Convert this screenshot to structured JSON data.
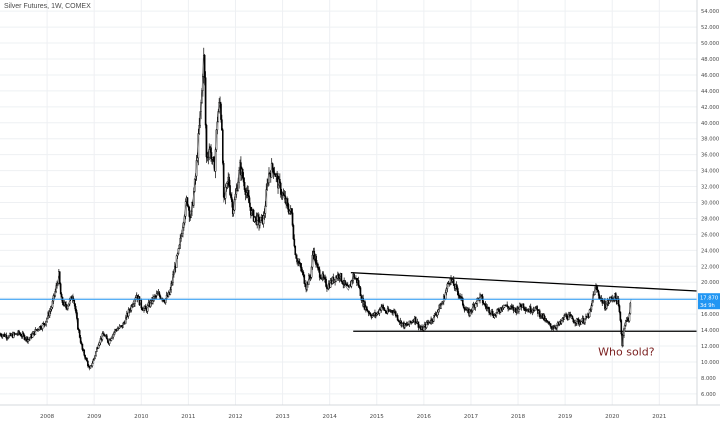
{
  "header": {
    "symbol_title": "Silver Futures, 1W, COMEX"
  },
  "colors": {
    "candle": "#000000",
    "grid": "#eef0f3",
    "axis_text": "#4a4a4a",
    "price_line": "#2196f3",
    "price_label_bg": "#2196f3",
    "price_label_text": "#ffffff",
    "trendline": "#000000",
    "annotation": "#7a1f1f"
  },
  "chart_data": {
    "type": "line",
    "title": "Silver Futures, 1W, COMEX",
    "xlabel": "",
    "ylabel": "",
    "xlim": [
      2007.0,
      2021.8
    ],
    "ylim": [
      4.6,
      55.4
    ],
    "grid": true,
    "x_ticks": [
      "2008",
      "2009",
      "2010",
      "2011",
      "2012",
      "2013",
      "2014",
      "2015",
      "2016",
      "2017",
      "2018",
      "2019",
      "2020",
      "2021"
    ],
    "y_ticks": [
      "54.000",
      "52.000",
      "50.000",
      "48.000",
      "46.000",
      "44.000",
      "42.000",
      "40.000",
      "38.000",
      "36.000",
      "34.000",
      "32.000",
      "30.000",
      "28.000",
      "26.000",
      "24.000",
      "22.000",
      "20.000",
      "18.000",
      "16.000",
      "14.000",
      "12.000",
      "10.000",
      "8.000",
      "6.000"
    ],
    "series": [
      {
        "values": [
          [
            2007.0,
            13.5
          ],
          [
            2007.2,
            13.2
          ],
          [
            2007.4,
            13.6
          ],
          [
            2007.6,
            12.8
          ],
          [
            2007.8,
            14.2
          ],
          [
            2007.95,
            14.8
          ],
          [
            2008.1,
            17.0
          ],
          [
            2008.2,
            19.5
          ],
          [
            2008.25,
            20.8
          ],
          [
            2008.3,
            17.8
          ],
          [
            2008.4,
            16.8
          ],
          [
            2008.5,
            17.8
          ],
          [
            2008.55,
            18.5
          ],
          [
            2008.65,
            14.5
          ],
          [
            2008.75,
            11.5
          ],
          [
            2008.85,
            10.0
          ],
          [
            2008.9,
            9.0
          ],
          [
            2009.0,
            10.5
          ],
          [
            2009.1,
            12.5
          ],
          [
            2009.2,
            13.5
          ],
          [
            2009.3,
            12.5
          ],
          [
            2009.45,
            14.0
          ],
          [
            2009.6,
            14.5
          ],
          [
            2009.75,
            16.5
          ],
          [
            2009.9,
            18.5
          ],
          [
            2010.0,
            17.0
          ],
          [
            2010.1,
            16.5
          ],
          [
            2010.2,
            17.5
          ],
          [
            2010.35,
            18.5
          ],
          [
            2010.5,
            17.8
          ],
          [
            2010.6,
            18.5
          ],
          [
            2010.7,
            21.5
          ],
          [
            2010.8,
            24.0
          ],
          [
            2010.9,
            28.0
          ],
          [
            2010.97,
            30.5
          ],
          [
            2011.05,
            28.0
          ],
          [
            2011.15,
            33.0
          ],
          [
            2011.22,
            38.5
          ],
          [
            2011.29,
            44.0
          ],
          [
            2011.32,
            48.5
          ],
          [
            2011.34,
            47.0
          ],
          [
            2011.38,
            35.5
          ],
          [
            2011.45,
            37.0
          ],
          [
            2011.55,
            34.0
          ],
          [
            2011.62,
            41.0
          ],
          [
            2011.67,
            42.5
          ],
          [
            2011.72,
            39.0
          ],
          [
            2011.75,
            30.0
          ],
          [
            2011.85,
            33.0
          ],
          [
            2011.95,
            29.0
          ],
          [
            2012.1,
            34.5
          ],
          [
            2012.2,
            32.0
          ],
          [
            2012.35,
            28.5
          ],
          [
            2012.5,
            27.5
          ],
          [
            2012.6,
            28.0
          ],
          [
            2012.7,
            33.5
          ],
          [
            2012.8,
            34.5
          ],
          [
            2012.9,
            32.5
          ],
          [
            2013.0,
            31.0
          ],
          [
            2013.1,
            29.5
          ],
          [
            2013.2,
            28.5
          ],
          [
            2013.25,
            24.5
          ],
          [
            2013.3,
            23.0
          ],
          [
            2013.4,
            21.5
          ],
          [
            2013.5,
            19.5
          ],
          [
            2013.6,
            21.0
          ],
          [
            2013.65,
            24.0
          ],
          [
            2013.75,
            21.5
          ],
          [
            2013.85,
            20.5
          ],
          [
            2013.95,
            19.5
          ],
          [
            2014.1,
            20.5
          ],
          [
            2014.2,
            21.0
          ],
          [
            2014.3,
            19.8
          ],
          [
            2014.4,
            19.0
          ],
          [
            2014.5,
            20.8
          ],
          [
            2014.6,
            20.0
          ],
          [
            2014.7,
            17.5
          ],
          [
            2014.8,
            16.5
          ],
          [
            2014.9,
            15.8
          ],
          [
            2015.0,
            16.0
          ],
          [
            2015.1,
            17.0
          ],
          [
            2015.2,
            16.2
          ],
          [
            2015.35,
            16.5
          ],
          [
            2015.5,
            15.0
          ],
          [
            2015.6,
            14.5
          ],
          [
            2015.7,
            14.8
          ],
          [
            2015.8,
            15.5
          ],
          [
            2015.95,
            14.0
          ],
          [
            2016.1,
            15.0
          ],
          [
            2016.2,
            15.5
          ],
          [
            2016.3,
            16.5
          ],
          [
            2016.4,
            17.5
          ],
          [
            2016.5,
            19.5
          ],
          [
            2016.55,
            20.5
          ],
          [
            2016.65,
            19.5
          ],
          [
            2016.75,
            18.5
          ],
          [
            2016.85,
            17.0
          ],
          [
            2016.95,
            16.0
          ],
          [
            2017.1,
            17.5
          ],
          [
            2017.2,
            18.2
          ],
          [
            2017.3,
            17.0
          ],
          [
            2017.4,
            16.5
          ],
          [
            2017.5,
            15.8
          ],
          [
            2017.6,
            16.5
          ],
          [
            2017.7,
            17.2
          ],
          [
            2017.8,
            16.8
          ],
          [
            2017.95,
            16.5
          ],
          [
            2018.1,
            17.2
          ],
          [
            2018.2,
            16.5
          ],
          [
            2018.35,
            16.8
          ],
          [
            2018.5,
            15.8
          ],
          [
            2018.6,
            15.0
          ],
          [
            2018.7,
            14.4
          ],
          [
            2018.8,
            14.5
          ],
          [
            2018.9,
            14.8
          ],
          [
            2019.0,
            15.8
          ],
          [
            2019.1,
            15.6
          ],
          [
            2019.2,
            15.2
          ],
          [
            2019.3,
            15.0
          ],
          [
            2019.45,
            15.4
          ],
          [
            2019.55,
            16.5
          ],
          [
            2019.6,
            18.5
          ],
          [
            2019.65,
            19.3
          ],
          [
            2019.75,
            18.0
          ],
          [
            2019.85,
            17.0
          ],
          [
            2019.95,
            17.8
          ],
          [
            2020.05,
            18.2
          ],
          [
            2020.12,
            17.5
          ],
          [
            2020.18,
            15.0
          ],
          [
            2020.21,
            12.0
          ],
          [
            2020.25,
            14.5
          ],
          [
            2020.3,
            15.2
          ],
          [
            2020.35,
            15.5
          ],
          [
            2020.4,
            17.9
          ]
        ]
      }
    ],
    "last_price": {
      "value": 17.87,
      "label": "17.870",
      "countdown": "3d 9h"
    },
    "trendlines": [
      {
        "from": [
          2014.45,
          21.2
        ],
        "to": [
          2021.8,
          18.9
        ]
      },
      {
        "from": [
          2014.5,
          13.85
        ],
        "to": [
          2021.8,
          13.85
        ]
      }
    ],
    "annotations": [
      {
        "text": "Who sold?",
        "x": 2020.3,
        "y": 10.8
      }
    ]
  }
}
